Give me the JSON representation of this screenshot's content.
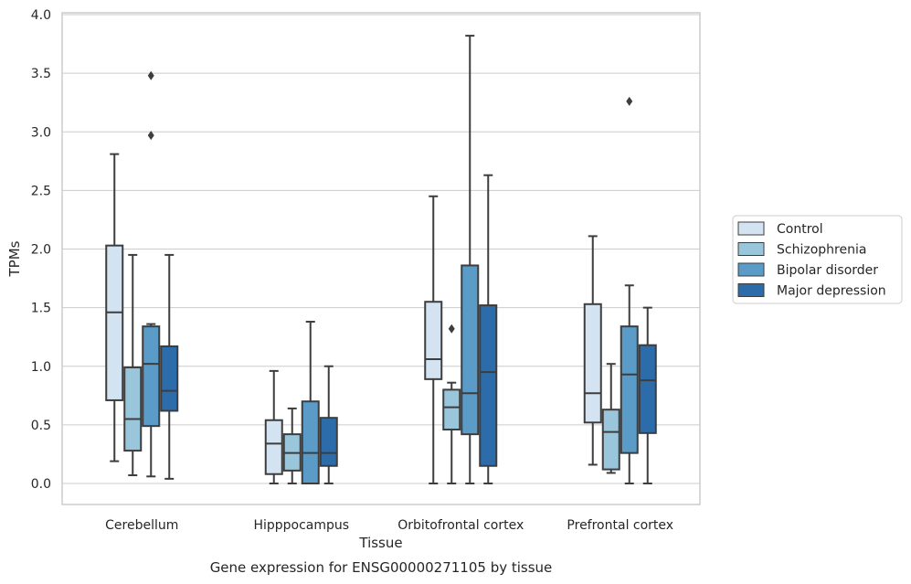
{
  "chart_data": {
    "type": "box",
    "title": "",
    "xlabel": "Tissue",
    "ylabel": "TPMs",
    "caption": "Gene expression for ENSG00000271105 by tissue",
    "ylim": [
      -0.18,
      4.02
    ],
    "yticks": [
      "0.0",
      "0.5",
      "1.0",
      "1.5",
      "2.0",
      "2.5",
      "3.0",
      "3.5",
      "4.0"
    ],
    "grid": "horizontal",
    "legend_position": "right",
    "categories": [
      "Cerebellum",
      "Hipppocampus",
      "Orbitofrontal cortex",
      "Prefrontal cortex"
    ],
    "series": [
      {
        "name": "Control",
        "color": "#d3e3f2",
        "boxes": [
          {
            "whislo": 0.19,
            "q1": 0.71,
            "med": 1.46,
            "q3": 2.03,
            "whishi": 2.81,
            "fliers": []
          },
          {
            "whislo": 0.0,
            "q1": 0.08,
            "med": 0.34,
            "q3": 0.54,
            "whishi": 0.96,
            "fliers": []
          },
          {
            "whislo": 0.0,
            "q1": 0.89,
            "med": 1.06,
            "q3": 1.55,
            "whishi": 2.45,
            "fliers": []
          },
          {
            "whislo": 0.16,
            "q1": 0.52,
            "med": 0.77,
            "q3": 1.53,
            "whishi": 2.11,
            "fliers": []
          }
        ]
      },
      {
        "name": "Schizophrenia",
        "color": "#9ac6dc",
        "boxes": [
          {
            "whislo": 0.07,
            "q1": 0.28,
            "med": 0.55,
            "q3": 0.99,
            "whishi": 1.95,
            "fliers": []
          },
          {
            "whislo": 0.0,
            "q1": 0.11,
            "med": 0.26,
            "q3": 0.42,
            "whishi": 0.64,
            "fliers": []
          },
          {
            "whislo": 0.0,
            "q1": 0.46,
            "med": 0.65,
            "q3": 0.8,
            "whishi": 0.86,
            "fliers": [
              1.32
            ]
          },
          {
            "whislo": 0.09,
            "q1": 0.12,
            "med": 0.44,
            "q3": 0.63,
            "whishi": 1.02,
            "fliers": []
          }
        ]
      },
      {
        "name": "Bipolar disorder",
        "color": "#5a9bc7",
        "boxes": [
          {
            "whislo": 0.06,
            "q1": 0.49,
            "med": 1.02,
            "q3": 1.34,
            "whishi": 1.36,
            "fliers": [
              2.97,
              3.48
            ]
          },
          {
            "whislo": 0.0,
            "q1": 0.0,
            "med": 0.26,
            "q3": 0.7,
            "whishi": 1.38,
            "fliers": []
          },
          {
            "whislo": 0.0,
            "q1": 0.42,
            "med": 0.77,
            "q3": 1.86,
            "whishi": 3.82,
            "fliers": []
          },
          {
            "whislo": 0.0,
            "q1": 0.26,
            "med": 0.93,
            "q3": 1.34,
            "whishi": 1.69,
            "fliers": [
              3.26
            ]
          }
        ]
      },
      {
        "name": "Major depression",
        "color": "#2c6cab",
        "boxes": [
          {
            "whislo": 0.04,
            "q1": 0.62,
            "med": 0.79,
            "q3": 1.17,
            "whishi": 1.95,
            "fliers": []
          },
          {
            "whislo": 0.0,
            "q1": 0.15,
            "med": 0.26,
            "q3": 0.56,
            "whishi": 1.0,
            "fliers": []
          },
          {
            "whislo": 0.0,
            "q1": 0.15,
            "med": 0.95,
            "q3": 1.52,
            "whishi": 2.63,
            "fliers": []
          },
          {
            "whislo": 0.0,
            "q1": 0.43,
            "med": 0.88,
            "q3": 1.18,
            "whishi": 1.5,
            "fliers": []
          }
        ]
      }
    ]
  }
}
